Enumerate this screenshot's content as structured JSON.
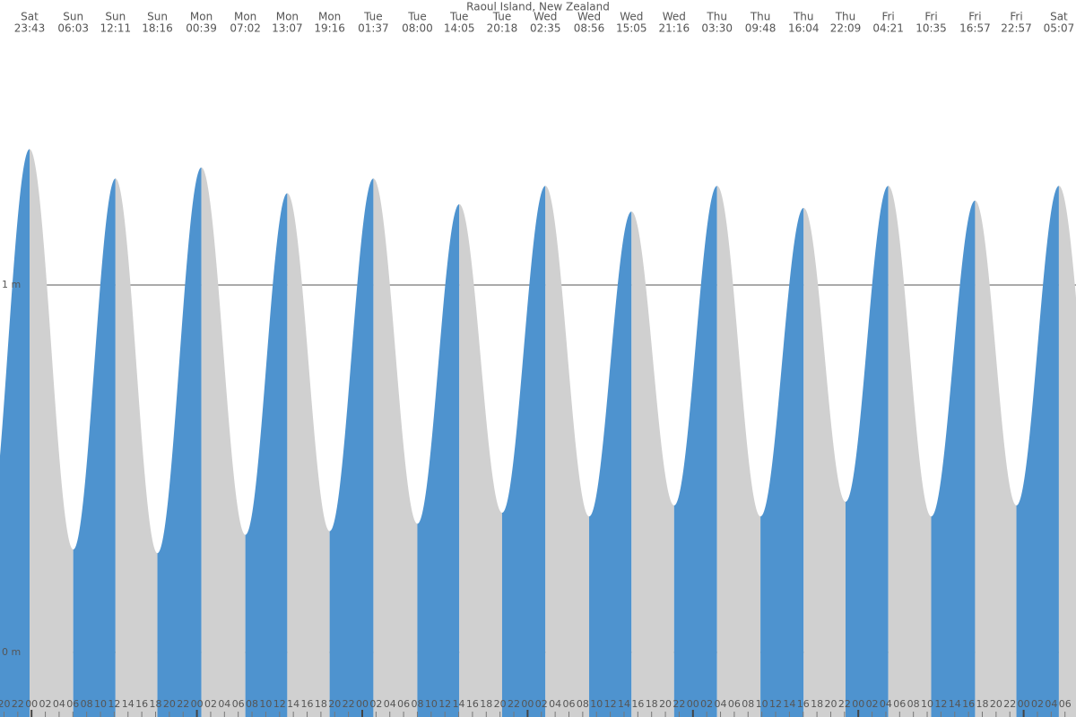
{
  "chart_data": {
    "type": "tide",
    "title": "Raoul Island, New Zealand",
    "day_labels": [
      "Sat",
      "Sun",
      "Sun",
      "Sun",
      "Mon",
      "Mon",
      "Mon",
      "Mon",
      "Tue",
      "Tue",
      "Tue",
      "Tue",
      "Wed",
      "Wed",
      "Wed",
      "Wed",
      "Thu",
      "Thu",
      "Thu",
      "Thu",
      "Fri",
      "Fri",
      "Fri",
      "Fri",
      "Sat"
    ],
    "time_labels": [
      "23:43",
      "06:03",
      "12:11",
      "18:16",
      "00:39",
      "07:02",
      "13:07",
      "19:16",
      "01:37",
      "08:00",
      "14:05",
      "20:18",
      "02:35",
      "08:56",
      "15:05",
      "21:16",
      "03:30",
      "09:48",
      "16:04",
      "22:09",
      "04:21",
      "10:35",
      "16:57",
      "22:57",
      "05:07"
    ],
    "x": [
      -0.283,
      6.05,
      12.183,
      18.267,
      24.65,
      31.033,
      37.117,
      43.267,
      49.617,
      56,
      62.083,
      68.3,
      74.583,
      80.933,
      87.083,
      93.267,
      99.5,
      105.8,
      112.067,
      118.15,
      124.35,
      130.583,
      136.95,
      142.95,
      149.117
    ],
    "values": [
      1.37,
      0.28,
      1.29,
      0.27,
      1.32,
      0.32,
      1.25,
      0.33,
      1.29,
      0.35,
      1.22,
      0.38,
      1.27,
      0.37,
      1.2,
      0.4,
      1.27,
      0.37,
      1.21,
      0.41,
      1.27,
      0.37,
      1.23,
      0.4,
      1.27
    ],
    "rise_color": "#4e93cf",
    "fall_color": "#d0d0d0",
    "grid": true,
    "xlim": [
      -4.58,
      151.6
    ],
    "ylim": [
      -0.176,
      1.776
    ],
    "yticks": [
      {
        "value": 0,
        "label": "0 m"
      },
      {
        "value": 1,
        "label": "1 m"
      }
    ],
    "xticks": [
      {
        "value": -4,
        "label": "20"
      },
      {
        "value": -2,
        "label": "22"
      },
      {
        "value": 0,
        "label": "00"
      },
      {
        "value": 2,
        "label": "02"
      },
      {
        "value": 4,
        "label": "04"
      },
      {
        "value": 6,
        "label": "06"
      },
      {
        "value": 8,
        "label": "08"
      },
      {
        "value": 10,
        "label": "10"
      },
      {
        "value": 12,
        "label": "12"
      },
      {
        "value": 14,
        "label": "14"
      },
      {
        "value": 16,
        "label": "16"
      },
      {
        "value": 18,
        "label": "18"
      },
      {
        "value": 20,
        "label": "20"
      },
      {
        "value": 22,
        "label": "22"
      },
      {
        "value": 24,
        "label": "00"
      },
      {
        "value": 26,
        "label": "02"
      },
      {
        "value": 28,
        "label": "04"
      },
      {
        "value": 30,
        "label": "06"
      },
      {
        "value": 32,
        "label": "08"
      },
      {
        "value": 34,
        "label": "10"
      },
      {
        "value": 36,
        "label": "12"
      },
      {
        "value": 38,
        "label": "14"
      },
      {
        "value": 40,
        "label": "16"
      },
      {
        "value": 42,
        "label": "18"
      },
      {
        "value": 44,
        "label": "20"
      },
      {
        "value": 46,
        "label": "22"
      },
      {
        "value": 48,
        "label": "00"
      },
      {
        "value": 50,
        "label": "02"
      },
      {
        "value": 52,
        "label": "04"
      },
      {
        "value": 54,
        "label": "06"
      },
      {
        "value": 56,
        "label": "08"
      },
      {
        "value": 58,
        "label": "10"
      },
      {
        "value": 60,
        "label": "12"
      },
      {
        "value": 62,
        "label": "14"
      },
      {
        "value": 64,
        "label": "16"
      },
      {
        "value": 66,
        "label": "18"
      },
      {
        "value": 68,
        "label": "20"
      },
      {
        "value": 70,
        "label": "22"
      },
      {
        "value": 72,
        "label": "00"
      },
      {
        "value": 74,
        "label": "02"
      },
      {
        "value": 76,
        "label": "04"
      },
      {
        "value": 78,
        "label": "06"
      },
      {
        "value": 80,
        "label": "08"
      },
      {
        "value": 82,
        "label": "10"
      },
      {
        "value": 84,
        "label": "12"
      },
      {
        "value": 86,
        "label": "14"
      },
      {
        "value": 88,
        "label": "16"
      },
      {
        "value": 90,
        "label": "18"
      },
      {
        "value": 92,
        "label": "20"
      },
      {
        "value": 94,
        "label": "22"
      },
      {
        "value": 96,
        "label": "00"
      },
      {
        "value": 98,
        "label": "02"
      },
      {
        "value": 100,
        "label": "04"
      },
      {
        "value": 102,
        "label": "06"
      },
      {
        "value": 104,
        "label": "08"
      },
      {
        "value": 106,
        "label": "10"
      },
      {
        "value": 108,
        "label": "12"
      },
      {
        "value": 110,
        "label": "14"
      },
      {
        "value": 112,
        "label": "16"
      },
      {
        "value": 114,
        "label": "18"
      },
      {
        "value": 116,
        "label": "20"
      },
      {
        "value": 118,
        "label": "22"
      },
      {
        "value": 120,
        "label": "00"
      },
      {
        "value": 122,
        "label": "02"
      },
      {
        "value": 124,
        "label": "04"
      },
      {
        "value": 126,
        "label": "06"
      },
      {
        "value": 128,
        "label": "08"
      },
      {
        "value": 130,
        "label": "10"
      },
      {
        "value": 132,
        "label": "12"
      },
      {
        "value": 134,
        "label": "14"
      },
      {
        "value": 136,
        "label": "16"
      },
      {
        "value": 138,
        "label": "18"
      },
      {
        "value": 140,
        "label": "20"
      },
      {
        "value": 142,
        "label": "22"
      },
      {
        "value": 144,
        "label": "00"
      },
      {
        "value": 146,
        "label": "02"
      },
      {
        "value": 148,
        "label": "04"
      },
      {
        "value": 150,
        "label": "06"
      }
    ]
  }
}
